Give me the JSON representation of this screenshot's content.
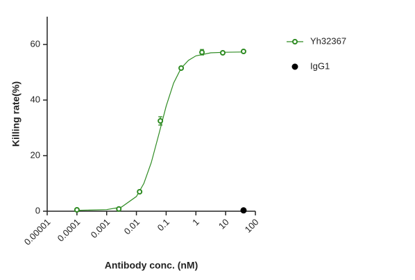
{
  "chart_data": {
    "type": "scatter",
    "xlabel": "Antibody conc. (nM)",
    "ylabel": "Killing rate(%)",
    "xscale": "log",
    "xlim": [
      1e-05,
      100
    ],
    "xticks": [
      1e-05,
      0.0001,
      0.001,
      0.01,
      0.1,
      1,
      10,
      100
    ],
    "ylim": [
      0,
      70
    ],
    "yticks": [
      0,
      20,
      40,
      60
    ],
    "grid": false,
    "legend": "right",
    "series": [
      {
        "name": "Yh32367",
        "color": "#2e8b22",
        "marker": "open-circle",
        "x": [
          0.0001,
          0.00256,
          0.0128,
          0.064,
          0.32,
          1.6,
          8,
          40
        ],
        "values": [
          0.5,
          0.8,
          7,
          32.5,
          51.5,
          57.2,
          57,
          57.5
        ],
        "errors": [
          0.3,
          0.3,
          0.5,
          1.5,
          0.5,
          1,
          0.5,
          0.5
        ],
        "fit": {
          "x": [
            0.0001,
            0.001,
            0.00316,
            0.01,
            0.0178,
            0.0316,
            0.0562,
            0.1,
            0.178,
            0.316,
            0.562,
            1,
            3.16,
            10,
            40
          ],
          "values": [
            0.31,
            0.58,
            1.5,
            5.3,
            10,
            17.5,
            27.5,
            37.8,
            46.1,
            51.4,
            54.3,
            55.9,
            57,
            57.2,
            57.3
          ]
        }
      },
      {
        "name": "IgG1",
        "color": "#000000",
        "marker": "filled-circle",
        "x": [
          40
        ],
        "values": [
          0.3
        ]
      }
    ]
  }
}
